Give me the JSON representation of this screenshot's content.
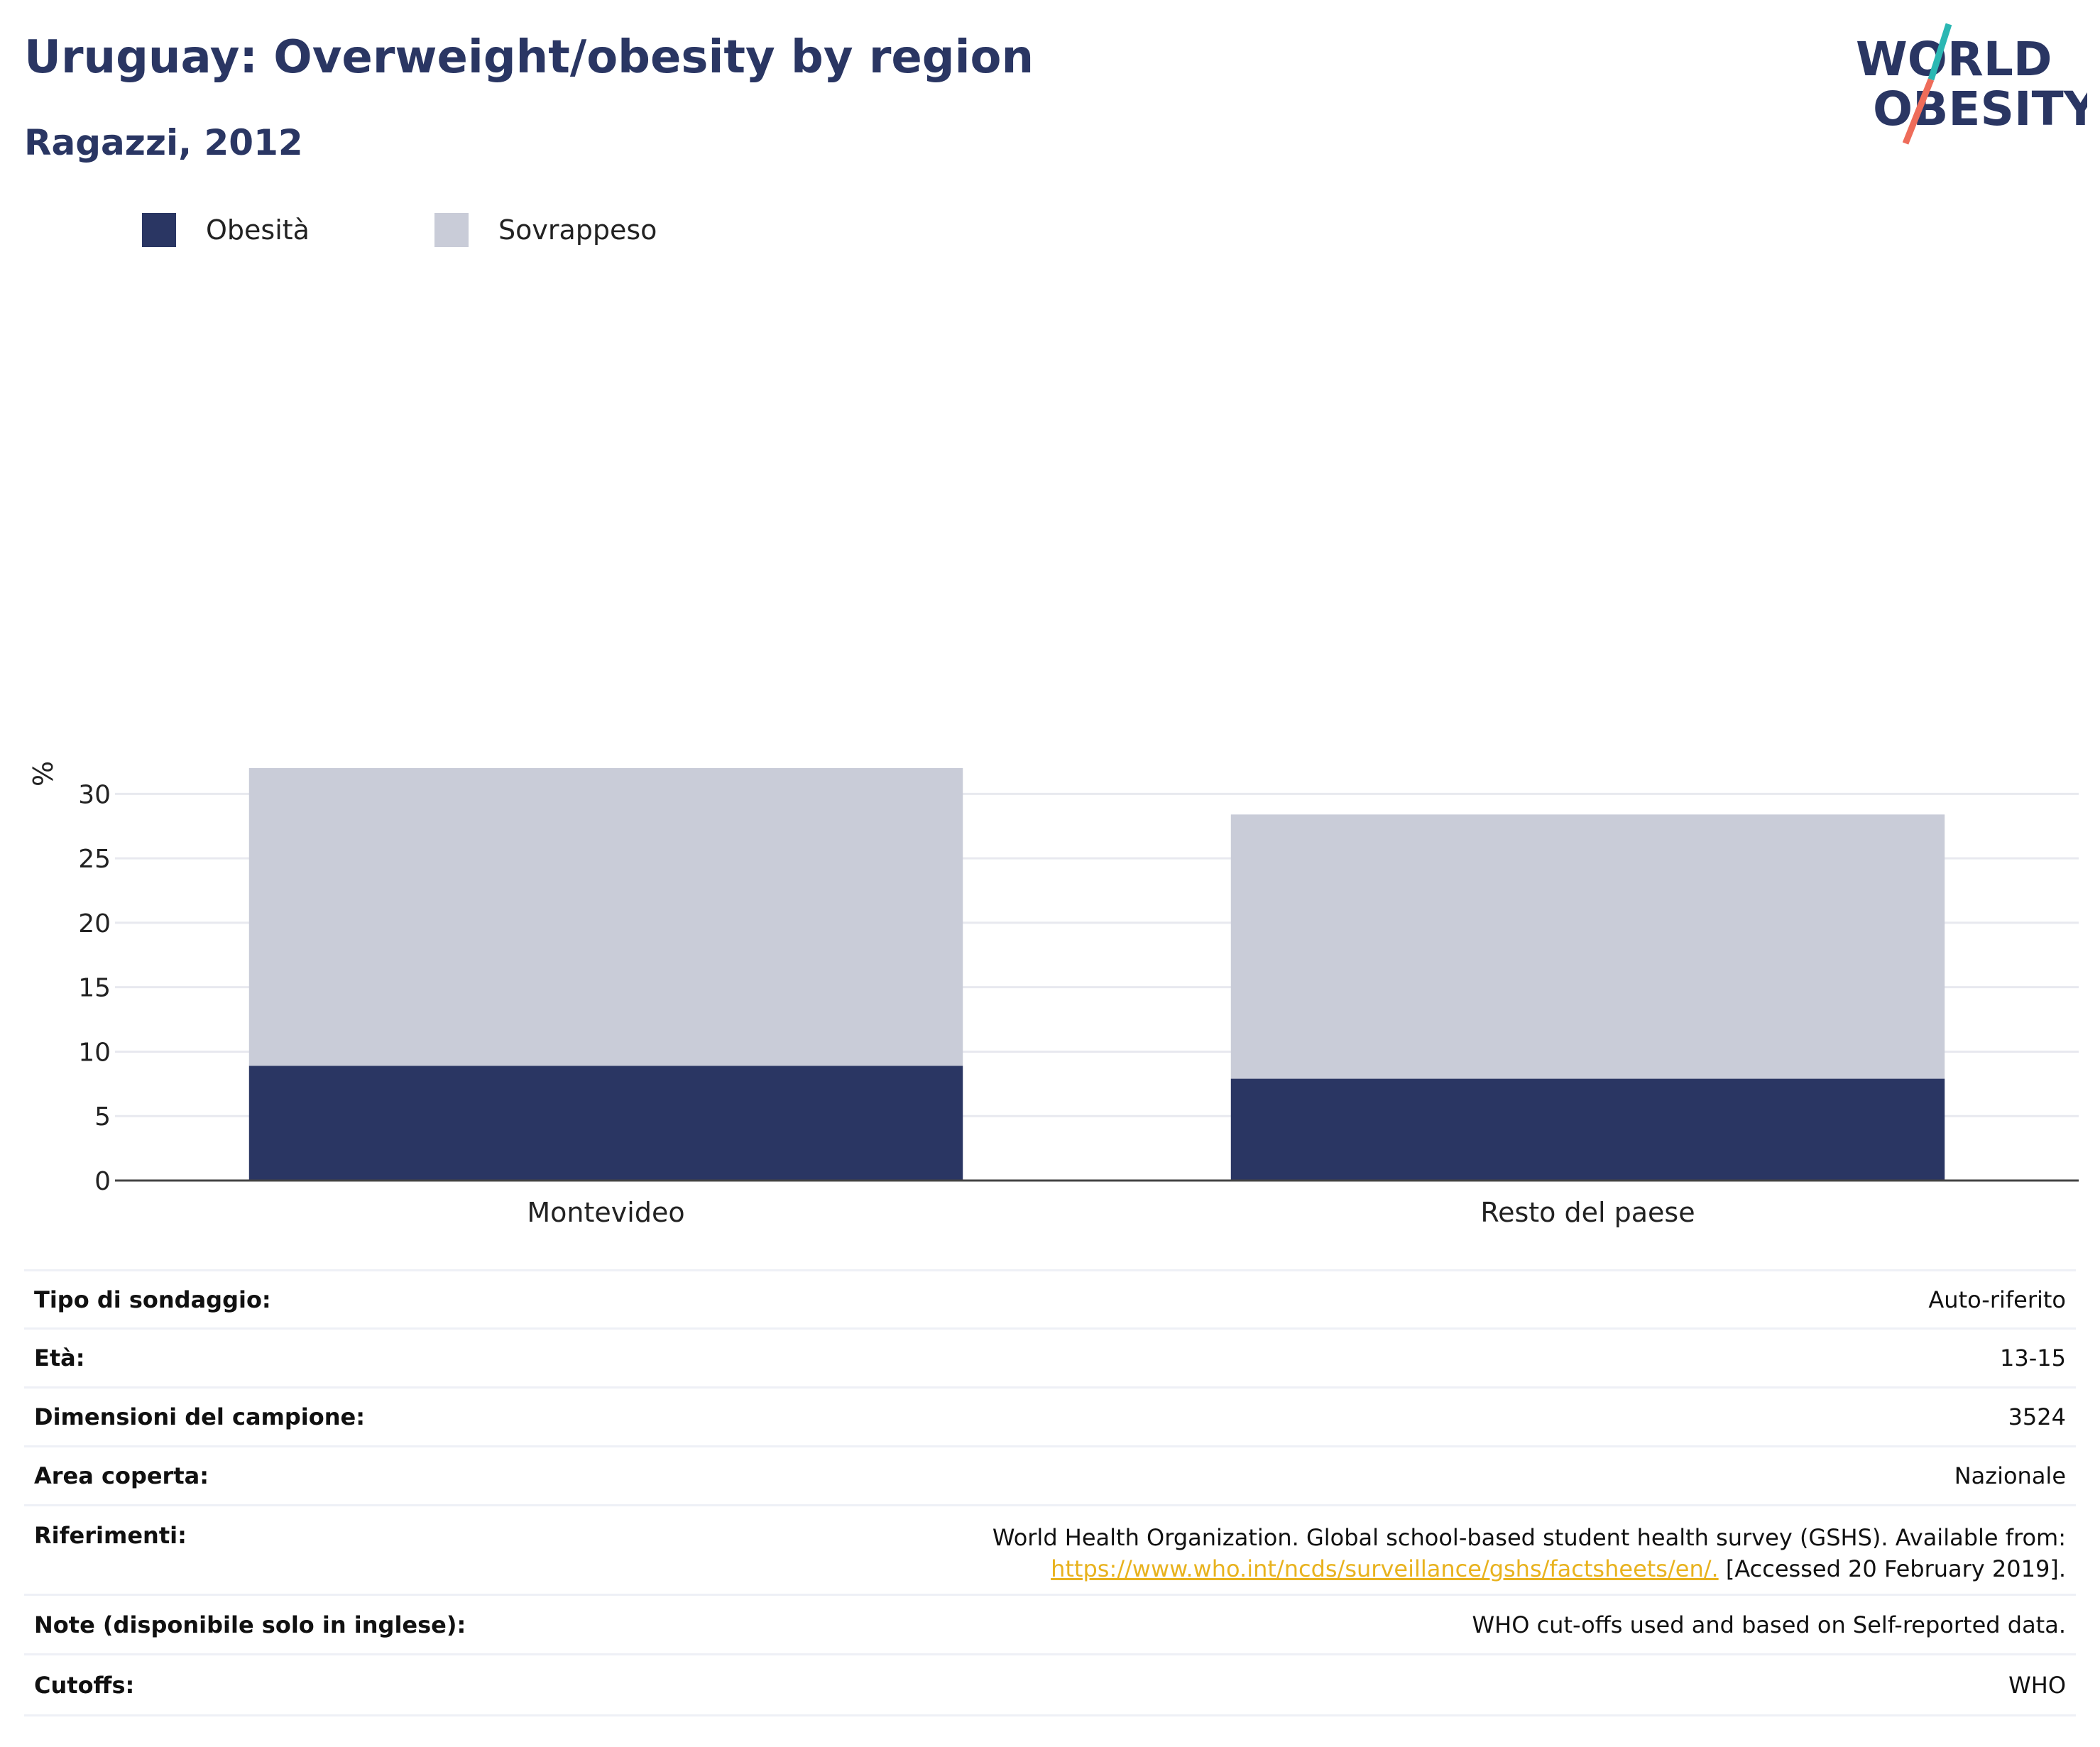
{
  "header": {
    "title": "Uruguay: Overweight/obesity by region",
    "subtitle": "Ragazzi, 2012"
  },
  "logo": {
    "line1": "WORLD",
    "line2": "OBESITY",
    "colors": {
      "text": "#2a3663",
      "slash_top": "#2bb7b3",
      "slash_bottom": "#ee6c5a"
    }
  },
  "legend": {
    "items": [
      {
        "label": "Obesità",
        "color": "#2a3663"
      },
      {
        "label": "Sovrappeso",
        "color": "#c9ccd8"
      }
    ]
  },
  "chart_data": {
    "type": "bar",
    "stacked": true,
    "categories": [
      "Montevideo",
      "Resto del paese"
    ],
    "series": [
      {
        "name": "Obesità",
        "values": [
          8.9,
          7.9
        ],
        "color": "#2a3663"
      },
      {
        "name": "Sovrappeso",
        "values": [
          23.1,
          20.5
        ],
        "color": "#c9ccd8"
      }
    ],
    "title": "Uruguay: Overweight/obesity by region",
    "subtitle": "Ragazzi, 2012",
    "xlabel": "",
    "ylabel": "%",
    "ylim": [
      0,
      32
    ],
    "yticks": [
      0,
      5,
      10,
      15,
      20,
      25,
      30
    ],
    "grid": true,
    "legend_position": "top-left"
  },
  "meta": {
    "rows": [
      {
        "label": "Tipo di sondaggio:",
        "value": "Auto-riferito"
      },
      {
        "label": "Età:",
        "value": "13-15"
      },
      {
        "label": "Dimensioni del campione:",
        "value": "3524"
      },
      {
        "label": "Area coperta:",
        "value": "Nazionale"
      },
      {
        "label": "Riferimenti:",
        "value_line1": "World Health Organization. Global school-based student health survey (GSHS). Available from:",
        "link": "https://www.who.int/ncds/surveillance/gshs/factsheets/en/.",
        "value_after_link": " [Accessed 20 February 2019]."
      },
      {
        "label": "Note (disponibile solo in inglese):",
        "value": "WHO cut-offs used and based on Self-reported data."
      },
      {
        "label": "Cutoffs:",
        "value": "WHO"
      }
    ]
  }
}
